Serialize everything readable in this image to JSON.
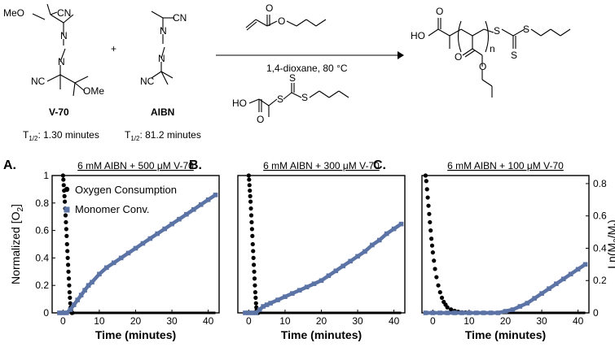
{
  "scheme": {
    "v70": {
      "meo": "MeO",
      "cn_top": "CN",
      "n_upper": "N",
      "n_lower": "N",
      "nc_bottom": "NC",
      "ome": "OMe",
      "name": "V-70",
      "halflife_prefix": "T",
      "halflife_sub": "1/2",
      "halflife_value": ": 1.30 minutes"
    },
    "plus": "+",
    "aibn": {
      "cn_top": "CN",
      "n_upper": "N",
      "n_lower": "N",
      "nc_bottom": "NC",
      "name": "AIBN",
      "halflife_prefix": "T",
      "halflife_sub": "1/2",
      "halflife_value": ": 81.2 minutes"
    },
    "conditions": "1,4-dioxane, 80 °C",
    "monomer": {
      "o_carbonyl": "O",
      "o_ester": "O"
    },
    "cta": {
      "ho": "HO",
      "o": "O",
      "s1": "S",
      "s2": "S",
      "s3": "S"
    },
    "product": {
      "ho": "HO",
      "o_acid": "O",
      "n": "n",
      "s1": "S",
      "s2": "S",
      "s3": "S",
      "o1": "O",
      "o2": "O"
    }
  },
  "chart_data": [
    {
      "panel": "A.",
      "type": "scatter",
      "title": "6 mM AIBN + 500 μM V-70",
      "xlabel": "Time (minutes)",
      "ylabel_left": "Normalized [O2]",
      "ylabel_left_parts": [
        "Normalized [O",
        "2",
        "]"
      ],
      "xlim": [
        -3,
        43
      ],
      "ylim_left": [
        0,
        1
      ],
      "ylim_right": [
        0,
        0.85
      ],
      "xticks": [
        0,
        10,
        20,
        30,
        40
      ],
      "yticks_left": [
        0,
        0.2,
        0.4,
        0.6,
        0.8,
        1
      ],
      "yticks_left_labels": [
        "0",
        "0.2",
        "0.4",
        "0.6",
        "0.8",
        "1"
      ],
      "legend": [
        "Oxygen Consumption",
        "Monomer Conv."
      ],
      "legend_position": "top-left",
      "series": [
        {
          "name": "Oxygen Consumption",
          "color": "#000000",
          "x": [
            0,
            0.1,
            0.2,
            0.3,
            0.4,
            0.5,
            0.6,
            0.7,
            0.8,
            0.9,
            1.0,
            1.1,
            1.2,
            1.3,
            1.4,
            1.5,
            1.6,
            1.7,
            1.8,
            1.9,
            2.0,
            2.1,
            2.2,
            2.4,
            2.6
          ],
          "y": [
            1.0,
            0.97,
            0.93,
            0.89,
            0.85,
            0.81,
            0.76,
            0.71,
            0.66,
            0.61,
            0.56,
            0.5,
            0.45,
            0.4,
            0.35,
            0.3,
            0.25,
            0.2,
            0.15,
            0.11,
            0.07,
            0.04,
            0.02,
            0.0,
            0.0
          ],
          "baseline_to": 42
        },
        {
          "name": "Monomer Conv.",
          "color": "#5b73a5",
          "x": [
            -1,
            0,
            1,
            2,
            3,
            4,
            5,
            6,
            7,
            8,
            10,
            12,
            14,
            16,
            18,
            20,
            22,
            24,
            26,
            28,
            30,
            32,
            34,
            36,
            38,
            40,
            42
          ],
          "y": [
            0.0,
            0.0,
            0.0,
            0.02,
            0.05,
            0.08,
            0.11,
            0.14,
            0.17,
            0.19,
            0.24,
            0.28,
            0.31,
            0.34,
            0.37,
            0.4,
            0.43,
            0.46,
            0.49,
            0.52,
            0.55,
            0.58,
            0.61,
            0.64,
            0.67,
            0.7,
            0.73
          ]
        }
      ]
    },
    {
      "panel": "B.",
      "type": "scatter",
      "title": "6 mM AIBN + 300 μM V-70",
      "xlabel": "Time (minutes)",
      "xlim": [
        -3,
        43
      ],
      "ylim_left": [
        0,
        1
      ],
      "ylim_right": [
        0,
        0.85
      ],
      "xticks": [
        0,
        10,
        20,
        30,
        40
      ],
      "series": [
        {
          "name": "Oxygen Consumption",
          "color": "#000000",
          "x": [
            0,
            0.1,
            0.2,
            0.3,
            0.4,
            0.5,
            0.6,
            0.7,
            0.8,
            0.9,
            1.0,
            1.1,
            1.2,
            1.3,
            1.4,
            1.5,
            1.6,
            1.7,
            1.8,
            1.9,
            2.0,
            2.1,
            2.2,
            2.4,
            2.6
          ],
          "y": [
            1.0,
            0.97,
            0.93,
            0.89,
            0.85,
            0.81,
            0.76,
            0.71,
            0.66,
            0.61,
            0.56,
            0.5,
            0.45,
            0.4,
            0.35,
            0.3,
            0.25,
            0.2,
            0.15,
            0.11,
            0.07,
            0.04,
            0.02,
            0.0,
            0.0
          ],
          "baseline_to": 42
        },
        {
          "name": "Monomer Conv.",
          "color": "#5b73a5",
          "x": [
            -1,
            0,
            1,
            2,
            3,
            4,
            5,
            6,
            8,
            10,
            12,
            14,
            16,
            18,
            20,
            22,
            24,
            26,
            28,
            30,
            32,
            34,
            36,
            38,
            40,
            42
          ],
          "y": [
            0.0,
            0.0,
            0.0,
            0.0,
            0.02,
            0.04,
            0.05,
            0.06,
            0.08,
            0.1,
            0.12,
            0.14,
            0.16,
            0.18,
            0.2,
            0.23,
            0.26,
            0.29,
            0.32,
            0.35,
            0.38,
            0.42,
            0.45,
            0.49,
            0.52,
            0.55
          ]
        }
      ]
    },
    {
      "panel": "C.",
      "type": "scatter",
      "title": "6 mM AIBN + 100 μM V-70",
      "xlabel": "Time (minutes)",
      "ylabel_right": "Ln(M0/Mt)",
      "ylabel_right_parts": [
        "Ln(M",
        "0",
        "/M",
        "t",
        ")"
      ],
      "xlim": [
        -3,
        43
      ],
      "ylim_left": [
        0,
        1
      ],
      "ylim_right": [
        0,
        0.85
      ],
      "xticks": [
        0,
        10,
        20,
        30,
        40
      ],
      "yticks_right": [
        0,
        0.2,
        0.4,
        0.6,
        0.8
      ],
      "yticks_right_labels": [
        "0",
        "0.2",
        "0.4",
        "0.6",
        "0.8"
      ],
      "series": [
        {
          "name": "Oxygen Consumption",
          "color": "#000000",
          "x": [
            -2,
            -1.8,
            -1.6,
            -1.4,
            -1.2,
            -1.0,
            -0.8,
            -0.6,
            -0.4,
            -0.2,
            0,
            0.3,
            0.6,
            1,
            1.5,
            2,
            2.5,
            3,
            3.5,
            4,
            5,
            6,
            7,
            8,
            9,
            10
          ],
          "y": [
            1.0,
            0.96,
            0.9,
            0.84,
            0.78,
            0.72,
            0.66,
            0.6,
            0.54,
            0.49,
            0.44,
            0.38,
            0.32,
            0.26,
            0.2,
            0.15,
            0.11,
            0.08,
            0.06,
            0.04,
            0.025,
            0.015,
            0.008,
            0.004,
            0.002,
            0.0
          ],
          "baseline_to": 42
        },
        {
          "name": "Monomer Conv.",
          "color": "#5b73a5",
          "x": [
            -2,
            0,
            2,
            4,
            6,
            8,
            10,
            12,
            14,
            16,
            18,
            20,
            22,
            24,
            26,
            28,
            30,
            32,
            34,
            36,
            38,
            40,
            42
          ],
          "y": [
            0.0,
            0.0,
            0.0,
            0.0,
            0.0,
            0.0,
            0.0,
            0.0,
            0.0,
            0.0,
            0.0,
            0.01,
            0.02,
            0.04,
            0.06,
            0.09,
            0.12,
            0.15,
            0.18,
            0.21,
            0.24,
            0.27,
            0.3
          ]
        }
      ]
    }
  ]
}
